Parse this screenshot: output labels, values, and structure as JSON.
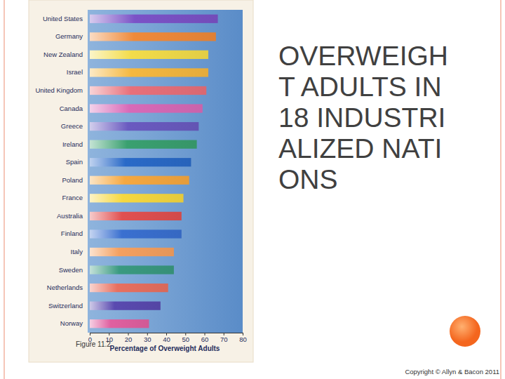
{
  "chart_data": {
    "type": "bar",
    "orientation": "horizontal",
    "title": "OVERWEIGHT ADULTS IN 18 INDUSTRIALIZED NATIONS",
    "x_label": "Percentage of Overweight Adults",
    "annotations": [
      "Figure 11.2",
      "Copyright © Allyn & Bacon 2011"
    ],
    "categories": [
      "United States",
      "Germany",
      "New Zealand",
      "Israel",
      "United Kingdom",
      "Canada",
      "Greece",
      "Ireland",
      "Spain",
      "Poland",
      "France",
      "Australia",
      "Finland",
      "Italy",
      "Sweden",
      "Netherlands",
      "Switzerland",
      "Norway"
    ],
    "values": [
      67,
      66,
      62,
      62,
      61,
      59,
      57,
      56,
      53,
      52,
      49,
      48,
      48,
      44,
      44,
      41,
      37,
      31
    ],
    "colors": [
      "#7b52c7",
      "#f08a3a",
      "#f3dc4a",
      "#f5b840",
      "#e8707a",
      "#d86ab8",
      "#6a5ac0",
      "#3aa070",
      "#2a6ac8",
      "#f5a840",
      "#f5d840",
      "#e05050",
      "#3a70d0",
      "#f5a060",
      "#3a9a80",
      "#e87060",
      "#5a4ab0",
      "#e060a0"
    ],
    "xlim": [
      0,
      80
    ],
    "xticks": [
      0,
      10,
      20,
      30,
      40,
      50,
      60,
      70,
      80
    ],
    "grid": false
  }
}
